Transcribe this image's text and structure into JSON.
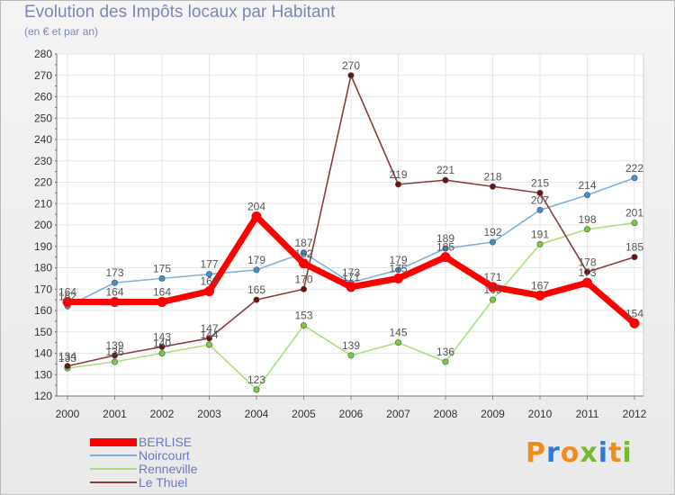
{
  "header": {
    "title": "Evolution des Impôts locaux par Habitant",
    "subtitle": "(en € et par an)"
  },
  "brand": {
    "letters": [
      "P",
      "r",
      "o",
      "x",
      "i",
      "t",
      "i"
    ],
    "colors": [
      "#f08c1e",
      "#2f7ad8",
      "#f08c1e",
      "#7ab82e",
      "#2f7ad8",
      "#f08c1e",
      "#7ab82e"
    ]
  },
  "chart_data": {
    "type": "line",
    "title": "Evolution des Impôts locaux par Habitant",
    "subtitle": "(en € et par an)",
    "xlabel": "",
    "ylabel": "",
    "grid": true,
    "legend_position": "bottom-left",
    "categories": [
      "2000",
      "2001",
      "2002",
      "2003",
      "2004",
      "2005",
      "2006",
      "2007",
      "2008",
      "2009",
      "2010",
      "2011",
      "2012"
    ],
    "ylim": [
      120,
      280
    ],
    "yticks": [
      120,
      130,
      140,
      150,
      160,
      170,
      180,
      190,
      200,
      210,
      220,
      230,
      240,
      250,
      260,
      270,
      280
    ],
    "series": [
      {
        "name": "BERLISE",
        "color": "#ff0000",
        "marker_color": "#ff0000",
        "bold": true,
        "values": [
          164,
          164,
          164,
          169,
          204,
          182,
          171,
          175,
          185,
          171,
          167,
          173,
          154
        ],
        "labels": [
          "164",
          "164",
          "164",
          "169",
          "204",
          "182",
          "171",
          "175",
          "185",
          "171",
          "167",
          "173",
          "154"
        ]
      },
      {
        "name": "Noircourt",
        "color": "#7fb0dc",
        "marker_color": "#3f8fd6",
        "bold": false,
        "values": [
          162,
          173,
          175,
          177,
          179,
          187,
          173,
          179,
          189,
          192,
          207,
          214,
          222
        ],
        "labels": [
          "162",
          "173",
          "175",
          "177",
          "179",
          "187",
          "173",
          "179",
          "189",
          "192",
          "207",
          "214",
          "222"
        ]
      },
      {
        "name": "Renneville",
        "color": "#a6e07a",
        "marker_color": "#7acc3c",
        "bold": false,
        "values": [
          133,
          136,
          140,
          144,
          123,
          153,
          139,
          145,
          136,
          165,
          191,
          198,
          201
        ],
        "labels": [
          "133",
          "136",
          "140",
          "144",
          "123",
          "153",
          "139",
          "145",
          "136",
          "165",
          "191",
          "198",
          "201"
        ]
      },
      {
        "name": "Le Thuel",
        "color": "#8a3a3a",
        "marker_color": "#6a1010",
        "bold": false,
        "values": [
          134,
          139,
          143,
          147,
          165,
          170,
          270,
          219,
          221,
          218,
          215,
          178,
          185
        ],
        "labels": [
          "134",
          "139",
          "143",
          "147",
          "165",
          "170",
          "270",
          "219",
          "221",
          "218",
          "215",
          "178",
          "185"
        ]
      }
    ]
  }
}
